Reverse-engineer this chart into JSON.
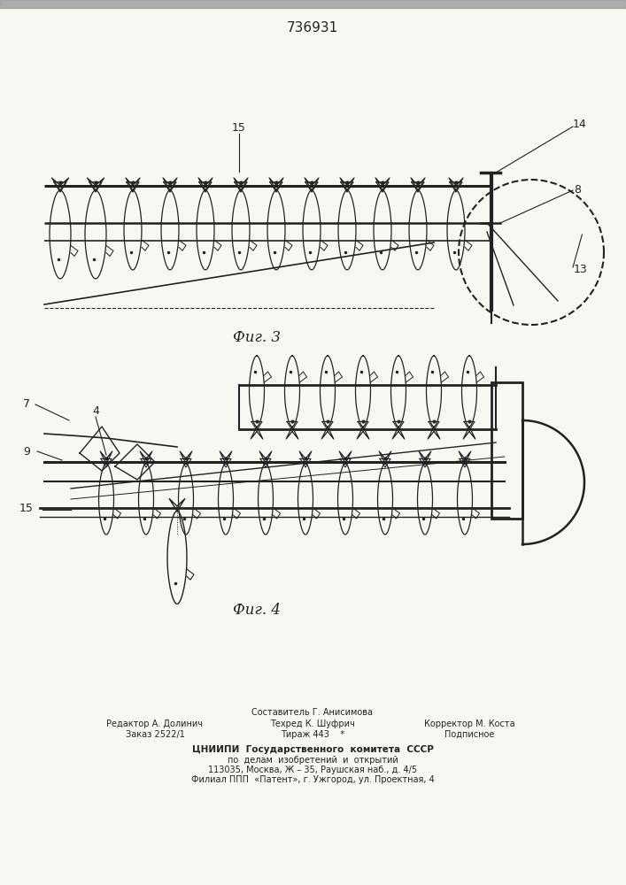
{
  "title": "736931",
  "title_fontsize": 11,
  "fig3_label": "Фиг. 3",
  "fig4_label": "Фиг. 4",
  "label_fontsize": 12,
  "bg_color": "#f8f7f2",
  "line_color": "#222222",
  "footer_col1_line1": "Редактор А. Долинич",
  "footer_col1_line2": "Заказ 2522/1",
  "footer_col2_line0": "Составитель Г. Анисимова",
  "footer_col2_line1": "Техред К. Шуфрич",
  "footer_col2_line2": "Тираж 443",
  "footer_col3_line1": "Корректор М. Коста",
  "footer_col3_line2": "Подписное",
  "footer_cniipи_1": "ЦНИИПИ  Государственного  комитета  СССР",
  "footer_cniipи_2": "по  делам  изобретений  и  открытий",
  "footer_cniipи_3": "113035, Москва, Ж – 35, Раушская наб., д. 4/5",
  "footer_cniipи_4": "Филиал ППП  «Патент», г. Ужгород, ул. Проектная, 4",
  "footer_fontsize": 7
}
